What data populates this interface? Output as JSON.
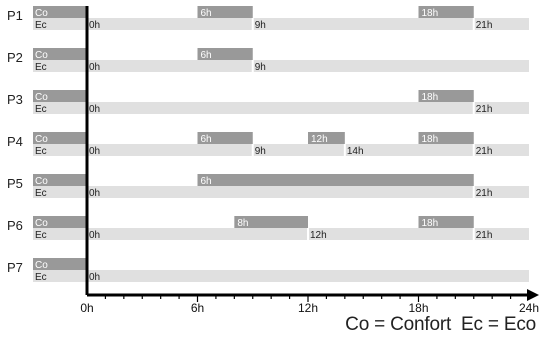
{
  "colors": {
    "confort": "#999999",
    "eco": "#e0e0e0",
    "axis": "#000000"
  },
  "row_labels": {
    "confort": "Co",
    "eco": "Ec"
  },
  "programs": [
    {
      "name": "P1",
      "confort": [
        {
          "from": "6h",
          "to": "9h"
        },
        {
          "from": "18h",
          "to": "21h"
        }
      ],
      "eco_labels": [
        "0h",
        "9h",
        "21h"
      ]
    },
    {
      "name": "P2",
      "confort": [
        {
          "from": "6h",
          "to": "9h"
        }
      ],
      "eco_labels": [
        "0h",
        "9h"
      ]
    },
    {
      "name": "P3",
      "confort": [
        {
          "from": "18h",
          "to": "21h"
        }
      ],
      "eco_labels": [
        "0h",
        "21h"
      ]
    },
    {
      "name": "P4",
      "confort": [
        {
          "from": "6h",
          "to": "9h"
        },
        {
          "from": "12h",
          "to": "14h"
        },
        {
          "from": "18h",
          "to": "21h"
        }
      ],
      "eco_labels": [
        "0h",
        "9h",
        "14h",
        "21h"
      ]
    },
    {
      "name": "P5",
      "confort": [
        {
          "from": "6h",
          "to": "21h"
        }
      ],
      "eco_labels": [
        "0h",
        "21h"
      ]
    },
    {
      "name": "P6",
      "confort": [
        {
          "from": "8h",
          "to": "12h"
        },
        {
          "from": "18h",
          "to": "21h"
        }
      ],
      "eco_labels": [
        "0h",
        "12h",
        "21h"
      ]
    },
    {
      "name": "P7",
      "confort": [],
      "eco_labels": [
        "0h"
      ]
    }
  ],
  "axis": {
    "ticks": [
      "0h",
      "6h",
      "12h",
      "18h",
      "24h"
    ]
  },
  "legend": {
    "co": "Co = Confort",
    "ec": "Ec = Eco"
  }
}
